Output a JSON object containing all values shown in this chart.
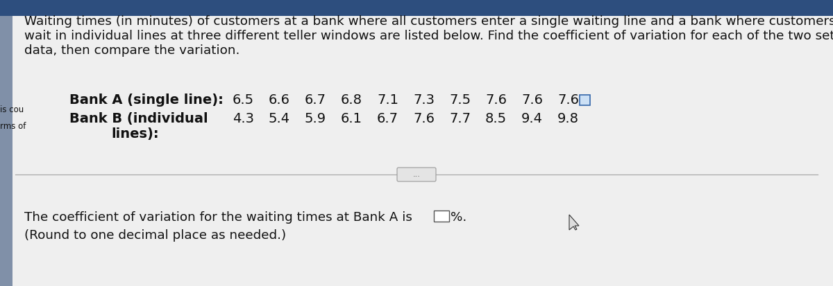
{
  "bg_color": "#d8d8d8",
  "content_bg": "#efefef",
  "header_bg": "#2d4e7e",
  "left_bar_color": "#8090a8",
  "paragraph_lines": [
    "Waiting times (in minutes) of customers at a bank where all customers enter a single waiting line and a bank where customers",
    "wait in individual lines at three different teller windows are listed below. Find the coefficient of variation for each of the two sets of",
    "data, then compare the variation."
  ],
  "bank_a_label": "Bank A (single line):",
  "bank_a_values": [
    "6.5",
    "6.6",
    "6.7",
    "6.8",
    "7.1",
    "7.3",
    "7.5",
    "7.6",
    "7.6",
    "7.6"
  ],
  "bank_b_label1": "Bank B (individual",
  "bank_b_label2": "lines):",
  "bank_b_values": [
    "4.3",
    "5.4",
    "5.9",
    "6.1",
    "6.7",
    "7.6",
    "7.7",
    "8.5",
    "9.4",
    "9.8"
  ],
  "side_text1": "is cou",
  "side_text2": "rms of",
  "divider_text": "...",
  "bottom_text1": "The coefficient of variation for the waiting times at Bank A is",
  "bottom_text2": "%.",
  "bottom_text3": "(Round to one decimal place as needed.)",
  "text_color": "#111111",
  "font_size_paragraph": 13.2,
  "font_size_data": 14.0,
  "font_size_bottom": 13.2,
  "font_size_side": 8.5
}
